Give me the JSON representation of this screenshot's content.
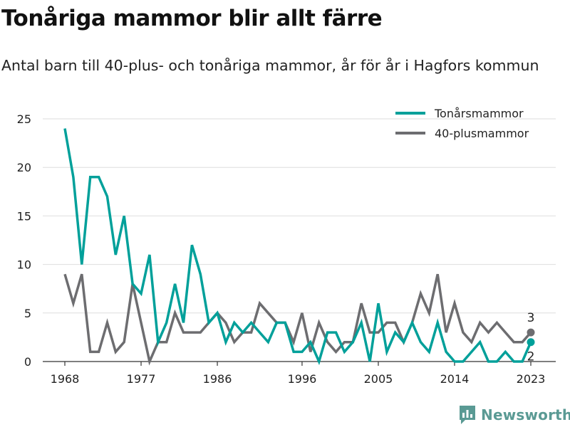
{
  "header": {
    "title": "Tonåriga mammor blir allt färre",
    "subtitle": "Antal barn till 40-plus- och tonåriga mammor, år för år i Hagfors kommun"
  },
  "brand": {
    "name": "Newsworthy",
    "color": "#5a9a94"
  },
  "chart_data": {
    "type": "line",
    "x": [
      1968,
      1969,
      1970,
      1971,
      1972,
      1973,
      1974,
      1975,
      1976,
      1977,
      1978,
      1979,
      1980,
      1981,
      1982,
      1983,
      1984,
      1985,
      1986,
      1987,
      1988,
      1989,
      1990,
      1991,
      1992,
      1993,
      1994,
      1995,
      1996,
      1997,
      1998,
      1999,
      2000,
      2001,
      2002,
      2003,
      2004,
      2005,
      2006,
      2007,
      2008,
      2009,
      2010,
      2011,
      2012,
      2013,
      2014,
      2015,
      2016,
      2017,
      2018,
      2019,
      2020,
      2021,
      2022,
      2023
    ],
    "series": [
      {
        "name": "Tonårsmammor",
        "color": "#00a09a",
        "values": [
          24,
          19,
          10,
          19,
          19,
          17,
          11,
          15,
          8,
          7,
          11,
          2,
          4,
          8,
          4,
          12,
          9,
          4,
          5,
          2,
          4,
          3,
          4,
          3,
          2,
          4,
          4,
          1,
          1,
          2,
          0,
          3,
          3,
          1,
          2,
          4,
          0,
          6,
          1,
          3,
          2,
          4,
          2,
          1,
          4,
          1,
          0,
          0,
          1,
          2,
          0,
          0,
          1,
          0,
          0,
          2
        ]
      },
      {
        "name": "40-plusmammor",
        "color": "#6d6d70",
        "values": [
          9,
          6,
          9,
          1,
          1,
          4,
          1,
          2,
          8,
          4,
          0,
          2,
          2,
          5,
          3,
          3,
          3,
          4,
          5,
          4,
          2,
          3,
          3,
          6,
          5,
          4,
          4,
          2,
          5,
          1,
          4,
          2,
          1,
          2,
          2,
          6,
          3,
          3,
          4,
          4,
          2,
          4,
          7,
          5,
          9,
          3,
          6,
          3,
          2,
          4,
          3,
          4,
          3,
          2,
          2,
          3
        ]
      }
    ],
    "end_labels": [
      "3",
      "2"
    ],
    "xticks": [
      1968,
      1977,
      1986,
      1996,
      2005,
      2014,
      2023
    ],
    "yticks": [
      0,
      5,
      10,
      15,
      20,
      25
    ],
    "ylim": [
      0,
      25
    ],
    "xlim": [
      1968,
      2023
    ],
    "grid": true,
    "legend_position": "top-right"
  }
}
